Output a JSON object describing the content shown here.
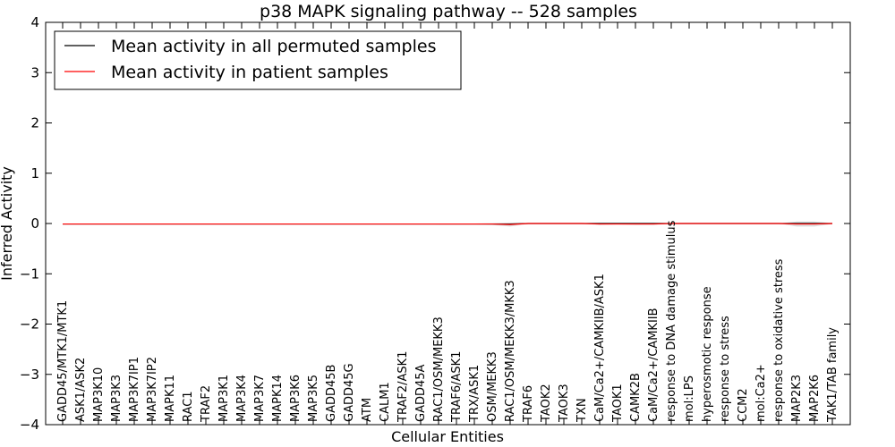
{
  "chart_data": {
    "type": "line",
    "title": "p38 MAPK signaling pathway -- 528 samples",
    "xlabel": "Cellular Entities",
    "ylabel": "Inferred Activity",
    "ylim": [
      -4,
      4
    ],
    "yticks": [
      -4,
      -3,
      -2,
      -1,
      0,
      1,
      2,
      3,
      4
    ],
    "ytick_labels": [
      "−4",
      "−3",
      "−2",
      "−1",
      "0",
      "1",
      "2",
      "3",
      "4"
    ],
    "legend_position": "top-left",
    "categories": [
      "GADD45/MTK1/MTK1",
      "ASK1/ASK2",
      "MAP3K10",
      "MAP3K3",
      "MAP3K7IP1",
      "MAP3K7IP2",
      "MAPK11",
      "RAC1",
      "TRAF2",
      "MAP3K1",
      "MAP3K4",
      "MAP3K7",
      "MAPK14",
      "MAP3K6",
      "MAP3K5",
      "GADD45B",
      "GADD45G",
      "ATM",
      "CALM1",
      "TRAF2/ASK1",
      "GADD45A",
      "RAC1/OSM/MEKK3",
      "TRAF6/ASK1",
      "TRX/ASK1",
      "OSM/MEKK3",
      "RAC1/OSM/MEKK3/MKK3",
      "TRAF6",
      "TAOK2",
      "TAOK3",
      "TXN",
      "CaM/Ca2+/CAMKIIB/ASK1",
      "TAOK1",
      "CAMK2B",
      "CaM/Ca2+/CAMKIIB",
      "response to DNA damage stimulus",
      "mol:LPS",
      "hyperosmotic response",
      "response to stress",
      "CCM2",
      "mol:Ca2+",
      "response to oxidative stress",
      "MAP2K3",
      "MAP2K6",
      "TAK1/TAB family"
    ],
    "series": [
      {
        "name": "Mean activity in all permuted samples",
        "color": "#000000",
        "values": [
          -0.01,
          -0.01,
          -0.01,
          -0.01,
          -0.01,
          -0.01,
          -0.01,
          -0.01,
          -0.01,
          -0.01,
          -0.01,
          -0.01,
          -0.01,
          -0.01,
          -0.01,
          -0.01,
          -0.01,
          -0.01,
          -0.01,
          -0.01,
          -0.01,
          -0.01,
          -0.01,
          -0.01,
          -0.01,
          -0.01,
          0,
          0,
          0,
          0,
          0,
          0,
          0,
          0,
          0,
          0,
          0,
          0,
          0,
          0,
          0,
          0,
          0,
          0
        ]
      },
      {
        "name": "Mean activity in patient samples",
        "color": "#ff0000",
        "values": [
          -0.01,
          -0.01,
          -0.01,
          -0.01,
          -0.01,
          -0.01,
          -0.01,
          -0.01,
          -0.01,
          -0.01,
          -0.01,
          -0.01,
          -0.01,
          -0.01,
          -0.01,
          -0.01,
          -0.01,
          -0.01,
          -0.01,
          -0.01,
          -0.01,
          -0.01,
          -0.01,
          -0.01,
          -0.01,
          -0.02,
          0,
          0,
          0,
          0,
          -0.01,
          -0.01,
          -0.01,
          -0.01,
          0,
          0,
          0,
          0,
          0,
          0,
          0,
          -0.01,
          -0.01,
          0
        ]
      }
    ],
    "band": {
      "color": "#dddddd",
      "half_width": [
        0,
        0,
        0,
        0,
        0,
        0,
        0,
        0,
        0,
        0,
        0,
        0,
        0,
        0,
        0,
        0,
        0,
        0,
        0,
        0,
        0,
        0.01,
        0.01,
        0.01,
        0.02,
        0.04,
        0.01,
        0,
        0,
        0,
        0.02,
        0.01,
        0.02,
        0.02,
        0,
        0,
        0,
        0,
        0,
        0,
        0,
        0.05,
        0.05,
        0.01
      ]
    }
  }
}
